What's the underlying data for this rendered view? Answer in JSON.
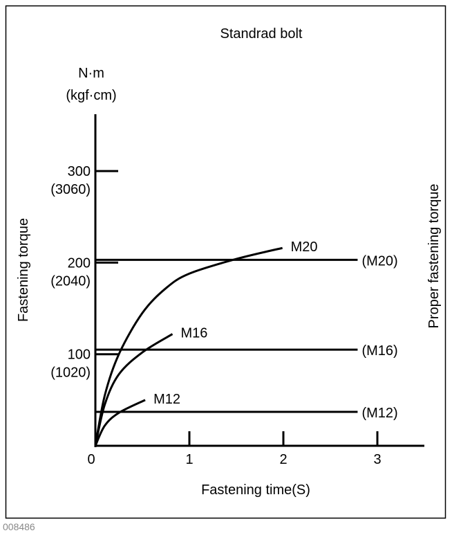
{
  "footer_id": "008486",
  "chart_data": {
    "type": "line",
    "title": "Standrad bolt",
    "xlabel": "Fastening time(S)",
    "ylabel": "Fastening torque",
    "ylabel_right": "Proper fastening torque",
    "y_unit": [
      "N·m",
      "(kgf·cm)"
    ],
    "xlim": [
      0,
      3.5
    ],
    "ylim": [
      0,
      360
    ],
    "grid": false,
    "x_ticks": [
      {
        "value": 0,
        "label": "0"
      },
      {
        "value": 1,
        "label": "1"
      },
      {
        "value": 2,
        "label": "2"
      },
      {
        "value": 3,
        "label": "3"
      }
    ],
    "y_ticks": [
      {
        "value": 100,
        "label": "100",
        "sublabel": "(1020)"
      },
      {
        "value": 200,
        "label": "200",
        "sublabel": "(2040)"
      },
      {
        "value": 300,
        "label": "300",
        "sublabel": "(3060)"
      }
    ],
    "series": [
      {
        "name": "M20",
        "points": [
          [
            0,
            0
          ],
          [
            0.1,
            55
          ],
          [
            0.25,
            100
          ],
          [
            0.5,
            145
          ],
          [
            0.75,
            172
          ],
          [
            1,
            188
          ],
          [
            1.5,
            204
          ],
          [
            1.99,
            216
          ]
        ]
      },
      {
        "name": "M16",
        "points": [
          [
            0,
            0
          ],
          [
            0.1,
            45
          ],
          [
            0.25,
            78
          ],
          [
            0.5,
            102
          ],
          [
            0.82,
            122
          ]
        ]
      },
      {
        "name": "M12",
        "points": [
          [
            0,
            0
          ],
          [
            0.1,
            22
          ],
          [
            0.25,
            36
          ],
          [
            0.53,
            50
          ]
        ]
      }
    ],
    "proper_torque_lines": [
      {
        "name": "(M20)",
        "value": 203,
        "x_end": 2.79
      },
      {
        "name": "(M16)",
        "value": 105,
        "x_end": 2.79
      },
      {
        "name": "(M12)",
        "value": 37,
        "x_end": 2.79
      }
    ],
    "color": "#000000"
  }
}
